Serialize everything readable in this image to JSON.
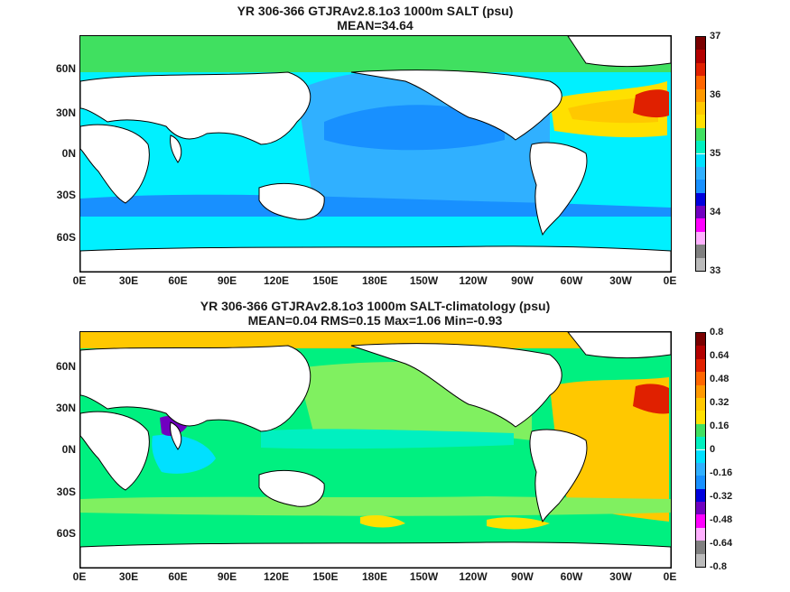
{
  "panels": [
    {
      "title_line1": "YR 306-366 GTJRAv2.8.1o3 1000m SALT (psu)",
      "title_line2": "MEAN=34.64",
      "lat_ticks": [
        "60N",
        "30N",
        "0N",
        "30S",
        "60S"
      ],
      "lon_ticks": [
        "0E",
        "30E",
        "60E",
        "90E",
        "120E",
        "150E",
        "180E",
        "150W",
        "120W",
        "90W",
        "60W",
        "30W",
        "0E"
      ],
      "colorbar": {
        "labels": [
          "37",
          "36",
          "35",
          "34",
          "33"
        ],
        "colors": [
          "#7a0000",
          "#b30000",
          "#e02000",
          "#ff6600",
          "#ff9900",
          "#ffc800",
          "#ffe000",
          "#40e060",
          "#00f0c0",
          "#00e0ff",
          "#30b0ff",
          "#1890ff",
          "#0000dd",
          "#7000c0",
          "#ff00ff",
          "#ffb0ff",
          "#808080",
          "#bbbbbb"
        ]
      },
      "field_colors": {
        "land": "#ffffff",
        "coast": "#000000",
        "arctic": "#40e060",
        "tropics": "#00f0ff",
        "southern": "#00f0ff",
        "pacific_interior": "#30b0ff",
        "pacific_core": "#1890ff",
        "south_band": "#1890ff",
        "atlantic": "#ffe000",
        "atlantic_core": "#ffc800",
        "atlantic_hot": "#e02000",
        "med": "#b30000",
        "japan_sea": "#0000dd"
      }
    },
    {
      "title_line1": "YR 306-366 GTJRAv2.8.1o3 1000m SALT-climatology (psu)",
      "title_line2": "MEAN=0.04   RMS=0.15   Max=1.06   Min=-0.93",
      "lat_ticks": [
        "60N",
        "30N",
        "0N",
        "30S",
        "60S"
      ],
      "lon_ticks": [
        "0E",
        "30E",
        "60E",
        "90E",
        "120E",
        "150E",
        "180E",
        "150W",
        "120W",
        "90W",
        "60W",
        "30W",
        "0E"
      ],
      "colorbar": {
        "labels": [
          "0.8",
          "0.64",
          "0.48",
          "0.32",
          "0.16",
          "0",
          "-0.16",
          "-0.32",
          "-0.48",
          "-0.64",
          "-0.8"
        ],
        "colors": [
          "#7a0000",
          "#b30000",
          "#e02000",
          "#ff6600",
          "#ff9900",
          "#ffc800",
          "#ffe000",
          "#40e060",
          "#00f0c0",
          "#00e0ff",
          "#30b0ff",
          "#1890ff",
          "#0000dd",
          "#7000c0",
          "#ff00ff",
          "#ffb0ff",
          "#808080",
          "#bbbbbb"
        ]
      },
      "field_colors": {
        "land": "#ffffff",
        "coast": "#000000",
        "background": "#00f080",
        "arctic": "#ffc800",
        "north_pacific": "#80f060",
        "tropical": "#00f0c0",
        "indian_blue": "#00e0ff",
        "arabian": "#7000c0",
        "atlantic": "#ffc800",
        "atlantic_hot": "#e02000",
        "southern_yellow": "#ffe000",
        "south_band": "#80f060"
      }
    }
  ]
}
